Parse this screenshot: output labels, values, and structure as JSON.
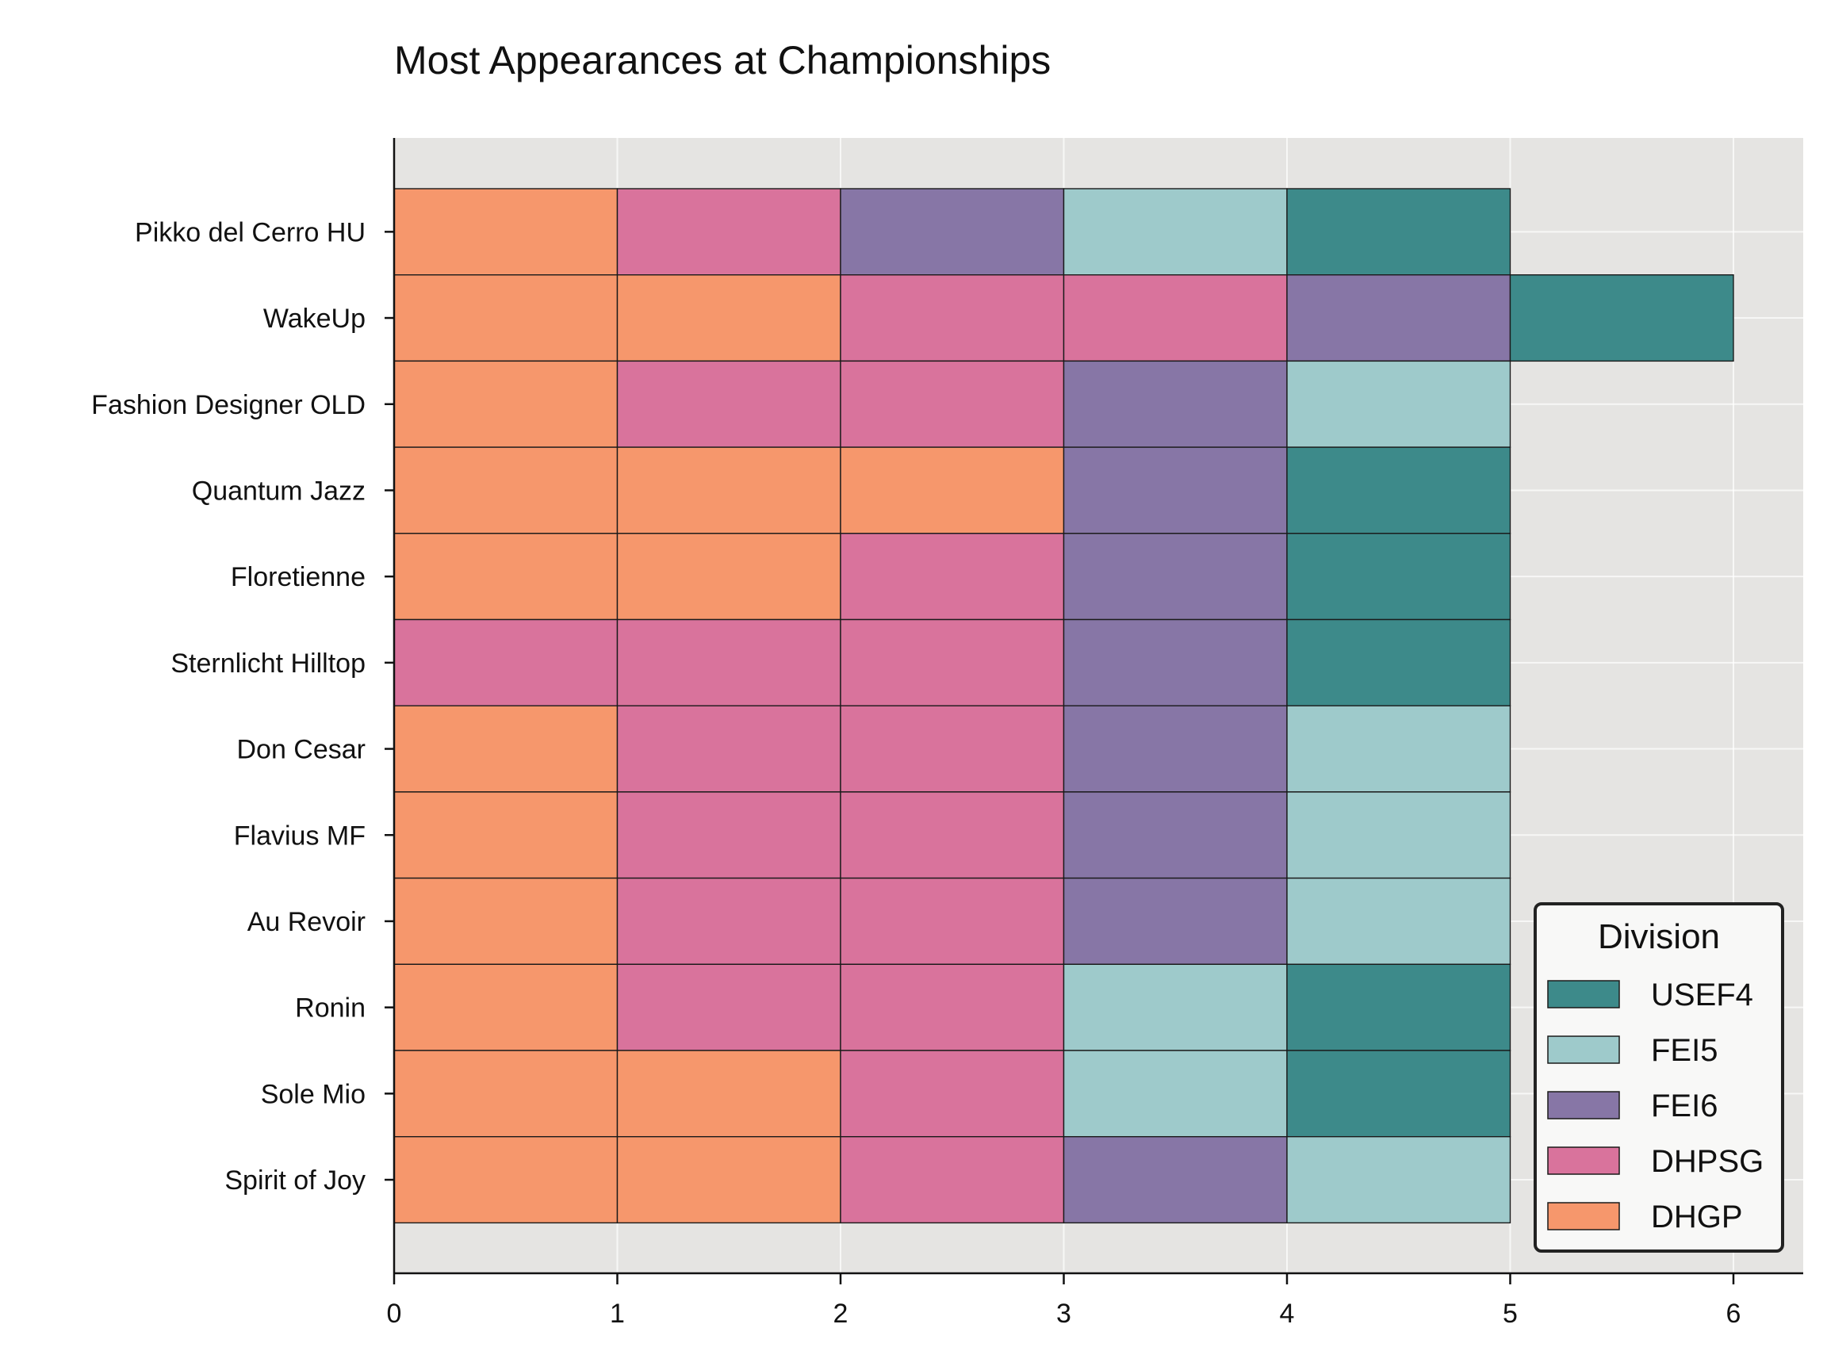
{
  "chart_data": {
    "type": "bar",
    "orientation": "horizontal",
    "stacked": true,
    "title": "Most Appearances at Championships",
    "xlabel": "",
    "ylabel": "",
    "xlim": [
      0,
      6.3
    ],
    "xticks": [
      0,
      1,
      2,
      3,
      4,
      5,
      6
    ],
    "grid": true,
    "legend_placement": "bottom-right",
    "legend_title": "Division",
    "divisions": [
      {
        "name": "USEF4",
        "color": "#3d8a8a"
      },
      {
        "name": "FEI5",
        "color": "#9ecacb"
      },
      {
        "name": "FEI6",
        "color": "#8776a6"
      },
      {
        "name": "DHPSG",
        "color": "#d9739c"
      },
      {
        "name": "DHGP",
        "color": "#f6976c"
      }
    ],
    "horses": [
      {
        "name": "Pikko del Cerro HU",
        "appearances": [
          "DHGP",
          "DHPSG",
          "FEI6",
          "FEI5",
          "USEF4"
        ]
      },
      {
        "name": "WakeUp",
        "appearances": [
          "DHGP",
          "DHGP",
          "DHPSG",
          "DHPSG",
          "FEI6",
          "USEF4"
        ]
      },
      {
        "name": "Fashion Designer OLD",
        "appearances": [
          "DHGP",
          "DHPSG",
          "DHPSG",
          "FEI6",
          "FEI5"
        ]
      },
      {
        "name": "Quantum Jazz",
        "appearances": [
          "DHGP",
          "DHGP",
          "DHGP",
          "FEI6",
          "USEF4"
        ]
      },
      {
        "name": "Floretienne",
        "appearances": [
          "DHGP",
          "DHGP",
          "DHPSG",
          "FEI6",
          "USEF4"
        ]
      },
      {
        "name": "Sternlicht Hilltop",
        "appearances": [
          "DHPSG",
          "DHPSG",
          "DHPSG",
          "FEI6",
          "USEF4"
        ]
      },
      {
        "name": "Don Cesar",
        "appearances": [
          "DHGP",
          "DHPSG",
          "DHPSG",
          "FEI6",
          "FEI5"
        ]
      },
      {
        "name": "Flavius MF",
        "appearances": [
          "DHGP",
          "DHPSG",
          "DHPSG",
          "FEI6",
          "FEI5"
        ]
      },
      {
        "name": "Au Revoir",
        "appearances": [
          "DHGP",
          "DHPSG",
          "DHPSG",
          "FEI6",
          "FEI5"
        ]
      },
      {
        "name": "Ronin",
        "appearances": [
          "DHGP",
          "DHPSG",
          "DHPSG",
          "FEI5",
          "USEF4"
        ]
      },
      {
        "name": "Sole Mio",
        "appearances": [
          "DHGP",
          "DHGP",
          "DHPSG",
          "FEI5",
          "USEF4"
        ]
      },
      {
        "name": "Spirit of Joy",
        "appearances": [
          "DHGP",
          "DHGP",
          "DHPSG",
          "FEI6",
          "FEI5"
        ]
      }
    ]
  }
}
